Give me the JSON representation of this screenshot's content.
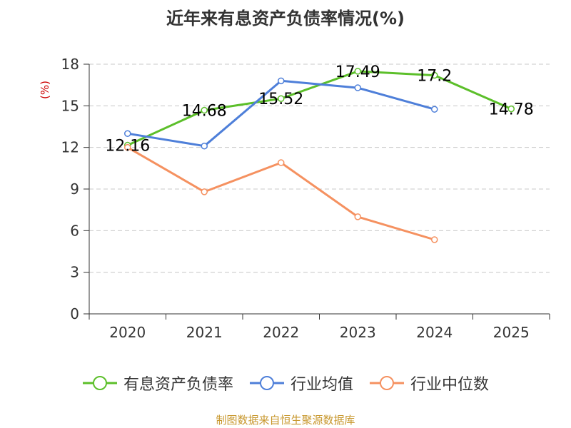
{
  "chart_data": {
    "type": "line",
    "title": "近年来有息资产负债率情况(%)",
    "ylabel": "(%)",
    "xlabel": "",
    "categories": [
      "2020",
      "2021",
      "2022",
      "2023",
      "2024",
      "2025"
    ],
    "ylim": [
      0,
      18
    ],
    "yticks": [
      0,
      3,
      6,
      9,
      12,
      15,
      18
    ],
    "grid": true,
    "legend_position": "bottom",
    "series": [
      {
        "name": "有息资产负债率",
        "color": "#5cbf2a",
        "values": [
          12.16,
          14.68,
          15.52,
          17.49,
          17.2,
          14.78
        ],
        "labels": [
          "12.16",
          "14.68",
          "15.52",
          "17.49",
          "17.2",
          "14.78"
        ]
      },
      {
        "name": "行业均值",
        "color": "#4e7fd9",
        "values": [
          13.0,
          12.1,
          16.8,
          16.3,
          14.75,
          null
        ]
      },
      {
        "name": "行业中位数",
        "color": "#f59160",
        "values": [
          12.0,
          8.8,
          10.9,
          7.0,
          5.35,
          null
        ]
      }
    ],
    "source": "制图数据来自恒生聚源数据库"
  }
}
